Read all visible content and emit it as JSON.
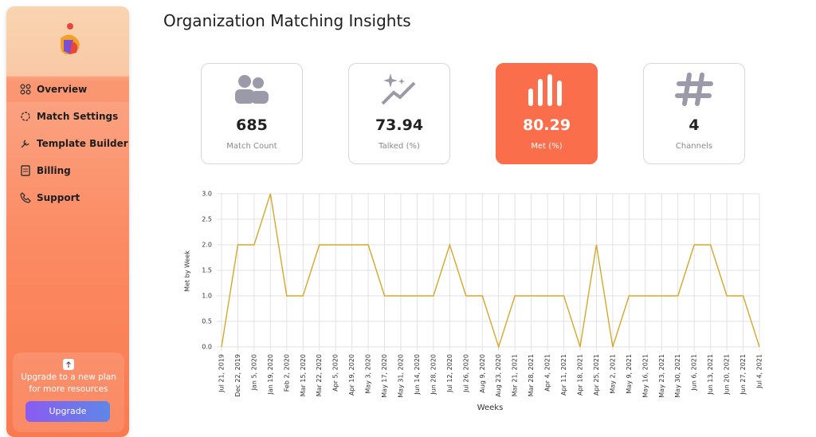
{
  "sidebar": {
    "nav": [
      "Overview",
      "Match Settings",
      "Template Builder",
      "Billing",
      "Support"
    ],
    "upgrade_text": "Upgrade to a new plan for more resources",
    "upgrade_button": "Upgrade"
  },
  "header": {
    "title": "Organization Matching Insights"
  },
  "cards": [
    {
      "value": "685",
      "label": "Match Count"
    },
    {
      "value": "73.94",
      "label": "Talked (%)"
    },
    {
      "value": "80.29",
      "label": "Met (%)"
    },
    {
      "value": "4",
      "label": "Channels"
    }
  ],
  "chart_data": {
    "type": "line",
    "y_label": "Met by Week",
    "x_label": "Weeks",
    "color": "#d4a82a",
    "grid": true,
    "categories": [
      "Jul 21, 2019",
      "Dec 22, 2019",
      "Jan 5, 2020",
      "Jan 19, 2020",
      "Feb 2, 2020",
      "Mar 15, 2020",
      "Mar 22, 2020",
      "Apr 5, 2020",
      "Apr 19, 2020",
      "May 3, 2020",
      "May 17, 2020",
      "May 31, 2020",
      "Jun 14, 2020",
      "Jun 28, 2020",
      "Jul 12, 2020",
      "Jul 26, 2020",
      "Aug 9, 2020",
      "Aug 23, 2020",
      "Mar 21, 2021",
      "Mar 28, 2021",
      "Apr 4, 2021",
      "Apr 11, 2021",
      "Apr 18, 2021",
      "Apr 25, 2021",
      "May 2, 2021",
      "May 9, 2021",
      "May 16, 2021",
      "May 23, 2021",
      "May 30, 2021",
      "Jun 6, 2021",
      "Jun 13, 2021",
      "Jun 20, 2021",
      "Jun 27, 2021",
      "Jul 4, 2021"
    ],
    "values": [
      0,
      2,
      2,
      3,
      1,
      1,
      2,
      2,
      2,
      2,
      1,
      1,
      1,
      1,
      2,
      1,
      1,
      0,
      1,
      1,
      1,
      1,
      0,
      2,
      0,
      1,
      1,
      1,
      1,
      2,
      2,
      1,
      1,
      0
    ],
    "ylim": [
      0,
      3
    ],
    "yticks": [
      {
        "value": 0,
        "label": "0.0"
      },
      0.5,
      {
        "value": 1,
        "label": "1.0"
      },
      1.5,
      {
        "value": 2,
        "label": "2.0"
      },
      2.5,
      {
        "value": 3,
        "label": "3.0"
      }
    ]
  }
}
